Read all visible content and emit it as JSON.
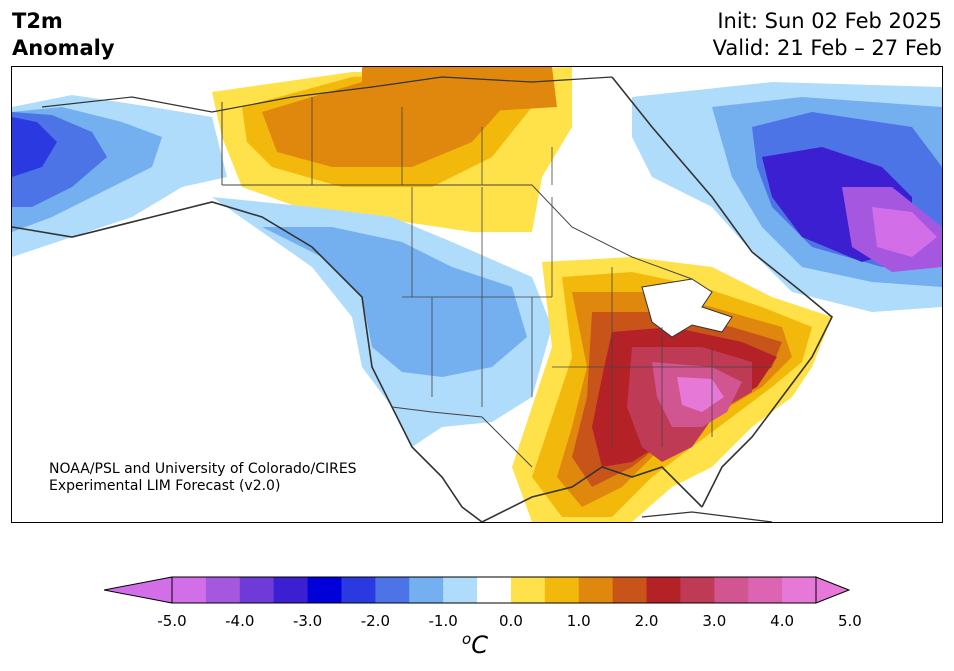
{
  "header": {
    "title_line1": "T2m",
    "title_line2": "Anomaly",
    "init": "Init: Sun 02 Feb 2025",
    "valid": "Valid: 21 Feb – 27 Feb"
  },
  "credit": {
    "line1": "NOAA/PSL and University of Colorado/CIRES",
    "line2": "Experimental LIM Forecast (v2.0)"
  },
  "colorbar": {
    "unit_super": "o",
    "unit_main": "C",
    "ticks": [
      "-5.0",
      "-4.0",
      "-3.0",
      "-2.0",
      "-1.0",
      "0.0",
      "1.0",
      "2.0",
      "3.0",
      "4.0",
      "5.0"
    ],
    "levels": [
      -5.0,
      -4.5,
      -4.0,
      -3.5,
      -3.0,
      -2.5,
      -2.0,
      -1.5,
      -1.0,
      -0.5,
      0.5,
      1.0,
      1.5,
      2.0,
      2.5,
      3.0,
      3.5,
      4.0,
      4.5,
      5.0
    ],
    "colors": [
      "#d26ee8",
      "#a557e0",
      "#6e3bd8",
      "#3b1fd1",
      "#0000d8",
      "#2a3ae0",
      "#4c74e6",
      "#74afef",
      "#aedcfa",
      "#ffffff",
      "#ffe14a",
      "#f2b90c",
      "#e0880e",
      "#c8541a",
      "#b42228",
      "#bf3a55",
      "#d05590",
      "#dc64b3",
      "#e678d8"
    ],
    "extend_low_color": "#d26ee8",
    "extend_high_color": "#e678d8"
  },
  "map": {
    "region": "North America",
    "field": "2-m temperature anomaly"
  }
}
